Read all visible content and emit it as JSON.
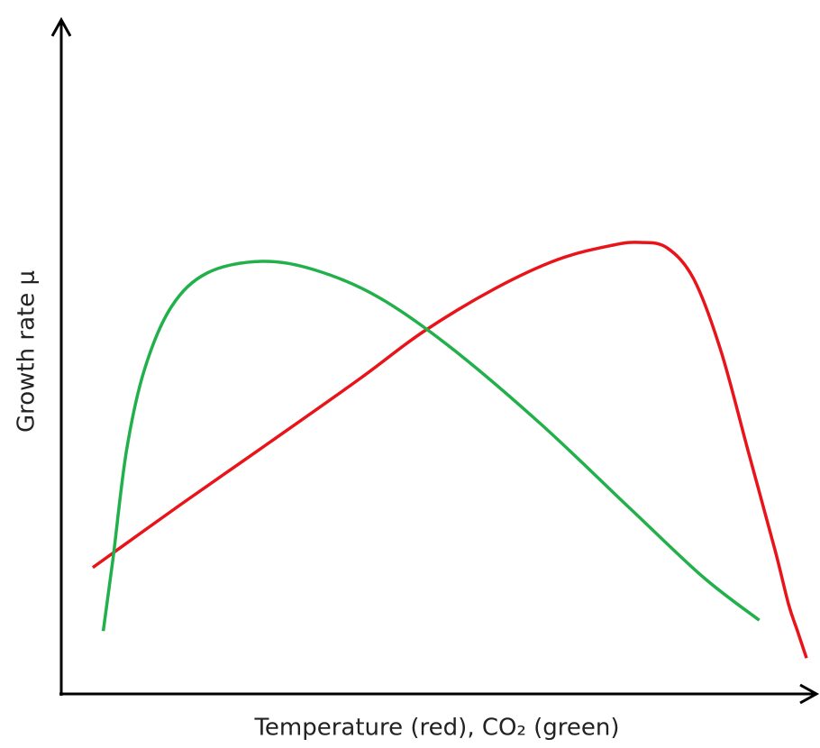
{
  "chart_data": {
    "type": "line",
    "xlabel": "Temperature (red), CO₂ (green)",
    "ylabel": "Growth rate μ",
    "xlim": [
      0,
      100
    ],
    "ylim": [
      0,
      100
    ],
    "series": [
      {
        "name": "Temperature",
        "color": "#e8141a",
        "x": [
          4.2,
          15.9,
          27.9,
          39.9,
          48.3,
          57.9,
          66.3,
          73.6,
          77.2,
          80.8,
          84.4,
          88,
          91.6,
          95.2,
          97,
          98.2,
          99.4
        ],
        "values": [
          18.7,
          28,
          37.3,
          46.7,
          53.6,
          60,
          64.3,
          66.4,
          66.8,
          66,
          61.3,
          50.7,
          36,
          21.3,
          13.3,
          9.3,
          5.3
        ]
      },
      {
        "name": "CO₂",
        "color": "#22b04a",
        "x": [
          5.6,
          6.9,
          8.7,
          11.1,
          14.7,
          19.5,
          26.7,
          33.9,
          42.3,
          51.9,
          63.9,
          76,
          85.6,
          93.1
        ],
        "values": [
          9.3,
          20,
          36,
          48,
          57.3,
          62.3,
          64,
          62.7,
          58.7,
          51.3,
          40,
          27.3,
          17.3,
          10.9
        ]
      }
    ]
  }
}
